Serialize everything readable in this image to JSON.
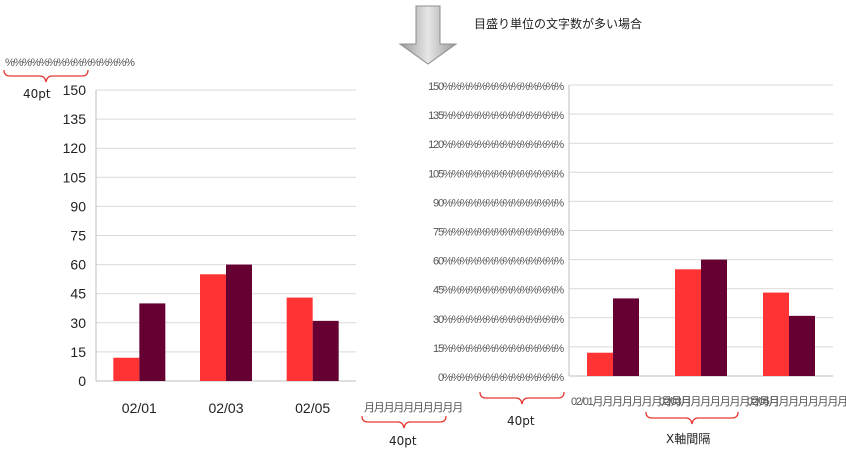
{
  "header": {
    "caption": "目盛り単位の文字数が多い場合"
  },
  "annotations": {
    "left_label_width": "40pt",
    "sample_month_label_width": "40pt",
    "right_label_width": "40pt",
    "x_interval": "X軸間隔",
    "sample_percent_text": "%%%%%%%%%%%%%%%",
    "sample_month_text": "月月月月月月月月月月"
  },
  "colors": {
    "series1": "#ff3333",
    "series2": "#660033",
    "arrow": "#b0b0b0",
    "brace": "#e53935"
  },
  "chart_data": [
    {
      "type": "bar",
      "categories": [
        "02/01",
        "02/03",
        "02/05"
      ],
      "series": [
        {
          "values": [
            12,
            55,
            43
          ]
        },
        {
          "values": [
            40,
            60,
            31
          ]
        }
      ],
      "ylim": [
        0,
        150
      ],
      "yticks": [
        "0",
        "15",
        "30",
        "45",
        "60",
        "75",
        "90",
        "105",
        "120",
        "135",
        "150"
      ],
      "grid": true,
      "legend": "none"
    },
    {
      "type": "bar",
      "categories": [
        "02/01月月月月月月月月月月",
        "02/03月月月月月月月月月月",
        "02/05月月月月月月月月月月"
      ],
      "series": [
        {
          "values": [
            12,
            55,
            43
          ]
        },
        {
          "values": [
            40,
            60,
            31
          ]
        }
      ],
      "ylim": [
        0,
        150
      ],
      "yticks": [
        "0%%%%%%%%%%%%%%",
        "15%%%%%%%%%%%%%%",
        "30%%%%%%%%%%%%%%",
        "45%%%%%%%%%%%%%%",
        "60%%%%%%%%%%%%%%",
        "75%%%%%%%%%%%%%%",
        "90%%%%%%%%%%%%%%",
        "105%%%%%%%%%%%%%%",
        "120%%%%%%%%%%%%%%",
        "135%%%%%%%%%%%%%%",
        "150%%%%%%%%%%%%%%"
      ],
      "grid": true,
      "legend": "none"
    }
  ]
}
